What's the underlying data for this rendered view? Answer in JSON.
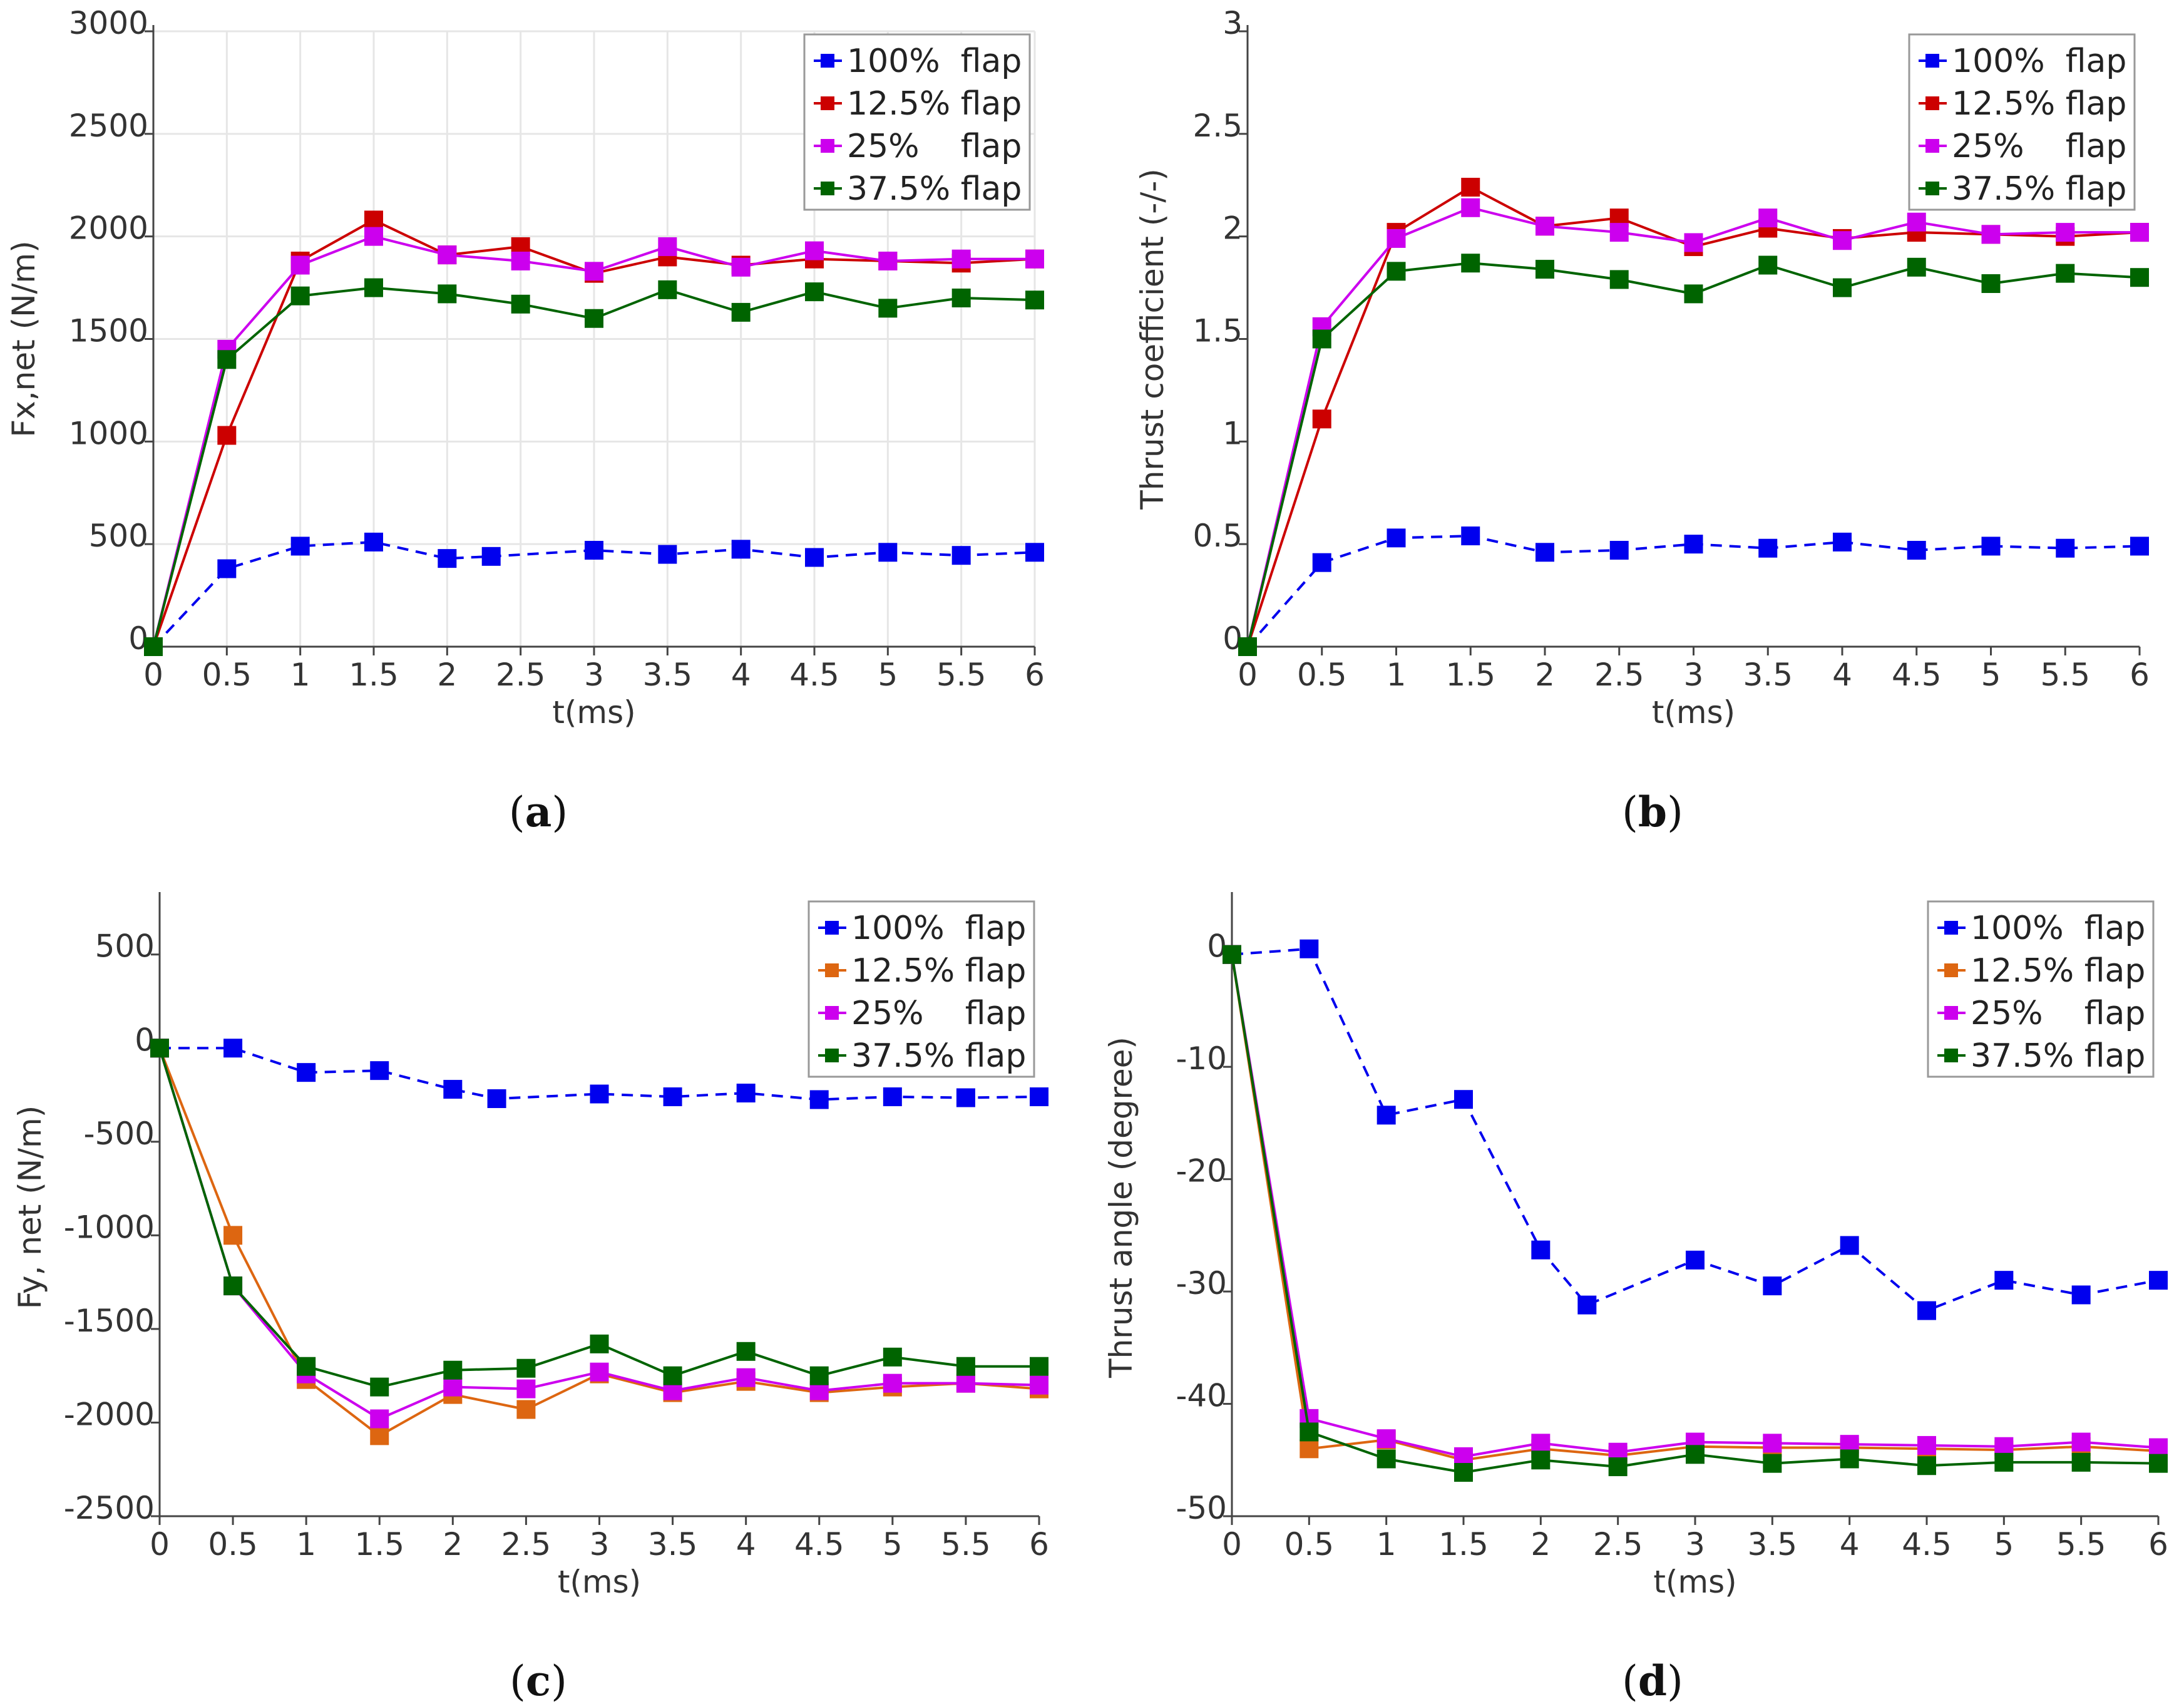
{
  "legend_names": [
    "100%  flap",
    "12.5% flap",
    "25%    flap",
    "37.5% flap"
  ],
  "chart_data": [
    {
      "type": "line",
      "panel_label": "a",
      "xlabel": "t(ms)",
      "ylabel": "Fx,net (N/m)",
      "xlim": [
        0,
        6
      ],
      "ylim": [
        0,
        3000
      ],
      "xticks": [
        "0",
        "0.5",
        "1",
        "1.5",
        "2",
        "2.5",
        "3",
        "3.5",
        "4",
        "4.5",
        "5",
        "5.5",
        "6"
      ],
      "yticks": [
        "0",
        "500",
        "1000",
        "1500",
        "2000",
        "2500",
        "3000"
      ],
      "grid": true,
      "legend_position": "top-right",
      "series": [
        {
          "name": "100%  flap",
          "color": "#0000ee",
          "dashed": true,
          "x": [
            0,
            0.5,
            1,
            1.5,
            2,
            2.3,
            3,
            3.5,
            4,
            4.5,
            5,
            5.5,
            6
          ],
          "y": [
            0,
            380,
            490,
            510,
            430,
            440,
            470,
            450,
            475,
            435,
            460,
            445,
            460
          ]
        },
        {
          "name": "12.5% flap",
          "color": "#cc0000",
          "dashed": false,
          "x": [
            0,
            0.5,
            1,
            1.5,
            2,
            2.5,
            3,
            3.5,
            4,
            4.5,
            5,
            5.5,
            6
          ],
          "y": [
            0,
            1030,
            1880,
            2080,
            1910,
            1950,
            1820,
            1900,
            1860,
            1890,
            1880,
            1870,
            1890
          ]
        },
        {
          "name": "25%    flap",
          "color": "#cc00ee",
          "dashed": false,
          "x": [
            0,
            0.5,
            1,
            1.5,
            2,
            2.5,
            3,
            3.5,
            4,
            4.5,
            5,
            5.5,
            6
          ],
          "y": [
            0,
            1450,
            1860,
            2000,
            1910,
            1880,
            1830,
            1950,
            1850,
            1930,
            1880,
            1890,
            1890
          ]
        },
        {
          "name": "37.5% flap",
          "color": "#006400",
          "dashed": false,
          "x": [
            0,
            0.5,
            1,
            1.5,
            2,
            2.5,
            3,
            3.5,
            4,
            4.5,
            5,
            5.5,
            6
          ],
          "y": [
            0,
            1400,
            1710,
            1750,
            1720,
            1670,
            1600,
            1740,
            1630,
            1730,
            1650,
            1700,
            1690
          ]
        }
      ]
    },
    {
      "type": "line",
      "panel_label": "b",
      "xlabel": "t(ms)",
      "ylabel": "Thrust coefficient (-/-)",
      "xlim": [
        0,
        6
      ],
      "ylim": [
        0,
        3
      ],
      "xticks": [
        "0",
        "0.5",
        "1",
        "1.5",
        "2",
        "2.5",
        "3",
        "3.5",
        "4",
        "4.5",
        "5",
        "5.5",
        "6"
      ],
      "yticks": [
        "0",
        "0.5",
        "1",
        "1.5",
        "2",
        "2.5",
        "3"
      ],
      "grid": false,
      "legend_position": "top-right",
      "series": [
        {
          "name": "100%  flap",
          "color": "#0000ee",
          "dashed": true,
          "x": [
            0,
            0.5,
            1,
            1.5,
            2,
            2.5,
            3,
            3.5,
            4,
            4.5,
            5,
            5.5,
            6
          ],
          "y": [
            0,
            0.41,
            0.53,
            0.54,
            0.46,
            0.47,
            0.5,
            0.48,
            0.51,
            0.47,
            0.49,
            0.48,
            0.49
          ]
        },
        {
          "name": "12.5% flap",
          "color": "#cc0000",
          "dashed": false,
          "x": [
            0,
            0.5,
            1,
            1.5,
            2,
            2.5,
            3,
            3.5,
            4,
            4.5,
            5,
            5.5,
            6
          ],
          "y": [
            0,
            1.11,
            2.02,
            2.24,
            2.05,
            2.09,
            1.95,
            2.04,
            1.99,
            2.02,
            2.01,
            2.0,
            2.02
          ]
        },
        {
          "name": "25%    flap",
          "color": "#cc00ee",
          "dashed": false,
          "x": [
            0,
            0.5,
            1,
            1.5,
            2,
            2.5,
            3,
            3.5,
            4,
            4.5,
            5,
            5.5,
            6
          ],
          "y": [
            0,
            1.56,
            1.99,
            2.14,
            2.05,
            2.02,
            1.97,
            2.09,
            1.98,
            2.07,
            2.01,
            2.02,
            2.02
          ]
        },
        {
          "name": "37.5% flap",
          "color": "#006400",
          "dashed": false,
          "x": [
            0,
            0.5,
            1,
            1.5,
            2,
            2.5,
            3,
            3.5,
            4,
            4.5,
            5,
            5.5,
            6
          ],
          "y": [
            0,
            1.5,
            1.83,
            1.87,
            1.84,
            1.79,
            1.72,
            1.86,
            1.75,
            1.85,
            1.77,
            1.82,
            1.8
          ]
        }
      ]
    },
    {
      "type": "line",
      "panel_label": "c",
      "xlabel": "t(ms)",
      "ylabel": "Fy, net (N/m)",
      "xlim": [
        0,
        6
      ],
      "ylim": [
        -2500,
        800
      ],
      "xticks": [
        "0",
        "0.5",
        "1",
        "1.5",
        "2",
        "2.5",
        "3",
        "3.5",
        "4",
        "4.5",
        "5",
        "5.5",
        "6"
      ],
      "yticks": [
        "500",
        "0",
        "-500",
        "-1000",
        "-1500",
        "-2000",
        "-2500"
      ],
      "grid": false,
      "legend_position": "top-right",
      "series": [
        {
          "name": "100%  flap",
          "color": "#0000ee",
          "dashed": true,
          "x": [
            0,
            0.5,
            1,
            1.5,
            2,
            2.3,
            3,
            3.5,
            4,
            4.5,
            5,
            5.5,
            6
          ],
          "y": [
            0,
            0,
            -130,
            -120,
            -220,
            -270,
            -245,
            -260,
            -240,
            -275,
            -260,
            -265,
            -260
          ]
        },
        {
          "name": "12.5% flap",
          "color": "#dd6611",
          "dashed": false,
          "x": [
            0,
            0.5,
            1,
            1.5,
            2,
            2.5,
            3,
            3.5,
            4,
            4.5,
            5,
            5.5,
            6
          ],
          "y": [
            0,
            -1000,
            -1770,
            -2070,
            -1850,
            -1930,
            -1740,
            -1840,
            -1780,
            -1840,
            -1810,
            -1790,
            -1820
          ]
        },
        {
          "name": "25%    flap",
          "color": "#cc00ee",
          "dashed": false,
          "x": [
            0,
            0.5,
            1,
            1.5,
            2,
            2.5,
            3,
            3.5,
            4,
            4.5,
            5,
            5.5,
            6
          ],
          "y": [
            0,
            -1270,
            -1740,
            -1980,
            -1810,
            -1820,
            -1730,
            -1830,
            -1760,
            -1830,
            -1790,
            -1790,
            -1800
          ]
        },
        {
          "name": "37.5% flap",
          "color": "#006400",
          "dashed": false,
          "x": [
            0,
            0.5,
            1,
            1.5,
            2,
            2.5,
            3,
            3.5,
            4,
            4.5,
            5,
            5.5,
            6
          ],
          "y": [
            0,
            -1270,
            -1700,
            -1810,
            -1720,
            -1710,
            -1580,
            -1750,
            -1620,
            -1750,
            -1650,
            -1700,
            -1700
          ]
        }
      ]
    },
    {
      "type": "line",
      "panel_label": "d",
      "xlabel": "t(ms)",
      "ylabel": "Thrust angle (degree)",
      "xlim": [
        0,
        6
      ],
      "ylim": [
        -50,
        5
      ],
      "xticks": [
        "0",
        "0.5",
        "1",
        "1.5",
        "2",
        "2.5",
        "3",
        "3.5",
        "4",
        "4.5",
        "5",
        "5.5",
        "6"
      ],
      "yticks": [
        "0",
        "-10",
        "-20",
        "-30",
        "-40",
        "-50"
      ],
      "grid": false,
      "legend_position": "top-right",
      "series": [
        {
          "name": "100%  flap",
          "color": "#0000ee",
          "dashed": true,
          "x": [
            0,
            0.5,
            1,
            1.5,
            2,
            2.3,
            3,
            3.5,
            4,
            4.5,
            5,
            5.5,
            6
          ],
          "y": [
            0,
            0.5,
            -14.3,
            -12.9,
            -26.3,
            -31.2,
            -27.2,
            -29.5,
            -25.9,
            -31.7,
            -29.0,
            -30.3,
            -29.0
          ]
        },
        {
          "name": "12.5% flap",
          "color": "#dd6611",
          "dashed": false,
          "x": [
            0,
            0.5,
            1,
            1.5,
            2,
            2.5,
            3,
            3.5,
            4,
            4.5,
            5,
            5.5,
            6
          ],
          "y": [
            0,
            -44.0,
            -43.2,
            -45.0,
            -44.0,
            -44.6,
            -43.8,
            -43.9,
            -43.9,
            -44.0,
            -44.1,
            -43.8,
            -44.2
          ]
        },
        {
          "name": "25%    flap",
          "color": "#cc00ee",
          "dashed": false,
          "x": [
            0,
            0.5,
            1,
            1.5,
            2,
            2.5,
            3,
            3.5,
            4,
            4.5,
            5,
            5.5,
            6
          ],
          "y": [
            0,
            -41.3,
            -43.1,
            -44.7,
            -43.5,
            -44.3,
            -43.4,
            -43.5,
            -43.6,
            -43.7,
            -43.8,
            -43.4,
            -43.9
          ]
        },
        {
          "name": "37.5% flap",
          "color": "#006400",
          "dashed": false,
          "x": [
            0,
            0.5,
            1,
            1.5,
            2,
            2.5,
            3,
            3.5,
            4,
            4.5,
            5,
            5.5,
            6
          ],
          "y": [
            0,
            -42.5,
            -44.9,
            -46.1,
            -45.0,
            -45.6,
            -44.5,
            -45.3,
            -44.9,
            -45.5,
            -45.2,
            -45.2,
            -45.3
          ]
        }
      ]
    }
  ]
}
